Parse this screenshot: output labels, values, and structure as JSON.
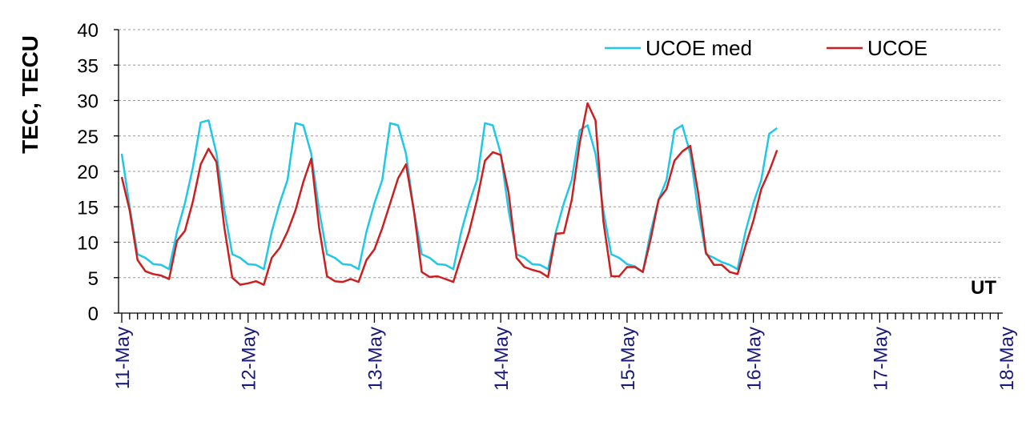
{
  "chart_data": {
    "type": "line",
    "ylabel": "TEC, TECU",
    "xlabel": "UT",
    "ylim": [
      0,
      40
    ],
    "yticks": [
      0,
      5,
      10,
      15,
      20,
      25,
      30,
      35,
      40
    ],
    "grid": true,
    "legend_position": "top-right",
    "xtick_labels": [
      "11-May",
      "12-May",
      "13-May",
      "14-May",
      "15-May",
      "16-May",
      "17-May",
      "18-May"
    ],
    "points_per_day": 16,
    "series": [
      {
        "name": "UCOE med",
        "color": "#1ec8e6",
        "values": [
          22.5,
          15,
          8.3,
          7.8,
          6.9,
          6.8,
          6.2,
          11.5,
          15.5,
          20.5,
          26.9,
          27.2,
          22.5,
          14.5,
          8.3,
          7.8,
          6.9,
          6.8,
          6.2,
          11.5,
          15.5,
          18.8,
          26.8,
          26.5,
          22.5,
          14.5,
          8.3,
          7.8,
          6.9,
          6.8,
          6.2,
          11.5,
          15.5,
          18.8,
          26.8,
          26.5,
          22.5,
          14.5,
          8.3,
          7.8,
          6.9,
          6.8,
          6.2,
          11.5,
          15.5,
          18.8,
          26.8,
          26.5,
          22.5,
          14.5,
          8.3,
          7.8,
          6.9,
          6.8,
          6.2,
          11.5,
          15.5,
          18.8,
          25.8,
          26.5,
          22.5,
          14.5,
          8.3,
          7.8,
          6.9,
          6.6,
          5.8,
          11.5,
          16,
          18.8,
          25.8,
          26.5,
          22.5,
          14.5,
          8.3,
          7.8,
          7.2,
          6.8,
          6.2,
          11.5,
          15.5,
          18.8,
          25.3,
          26.1
        ]
      },
      {
        "name": "UCOE",
        "color": "#cc1f1f",
        "values": [
          19.2,
          14.5,
          7.5,
          5.9,
          5.5,
          5.3,
          4.8,
          10.2,
          11.6,
          15.7,
          21,
          23.2,
          21.3,
          12,
          5,
          4,
          4.2,
          4.5,
          4,
          7.8,
          9.2,
          11.5,
          14.5,
          18.5,
          21.8,
          12,
          5.2,
          4.5,
          4.4,
          4.8,
          4.4,
          7.5,
          9,
          12,
          15.5,
          19,
          21,
          14.5,
          5.8,
          5.1,
          5.2,
          4.8,
          4.4,
          8,
          11.5,
          16,
          21.5,
          22.7,
          22.3,
          17,
          7.8,
          6.5,
          6.1,
          5.8,
          5.1,
          11.2,
          11.3,
          16,
          24,
          29.6,
          27.2,
          13,
          5.2,
          5.2,
          6.5,
          6.5,
          5.8,
          10.5,
          16,
          17.5,
          21.5,
          22.8,
          23.6,
          17,
          8.5,
          6.8,
          6.8,
          5.8,
          5.5,
          9.5,
          13,
          17.5,
          20,
          23
        ]
      }
    ]
  }
}
